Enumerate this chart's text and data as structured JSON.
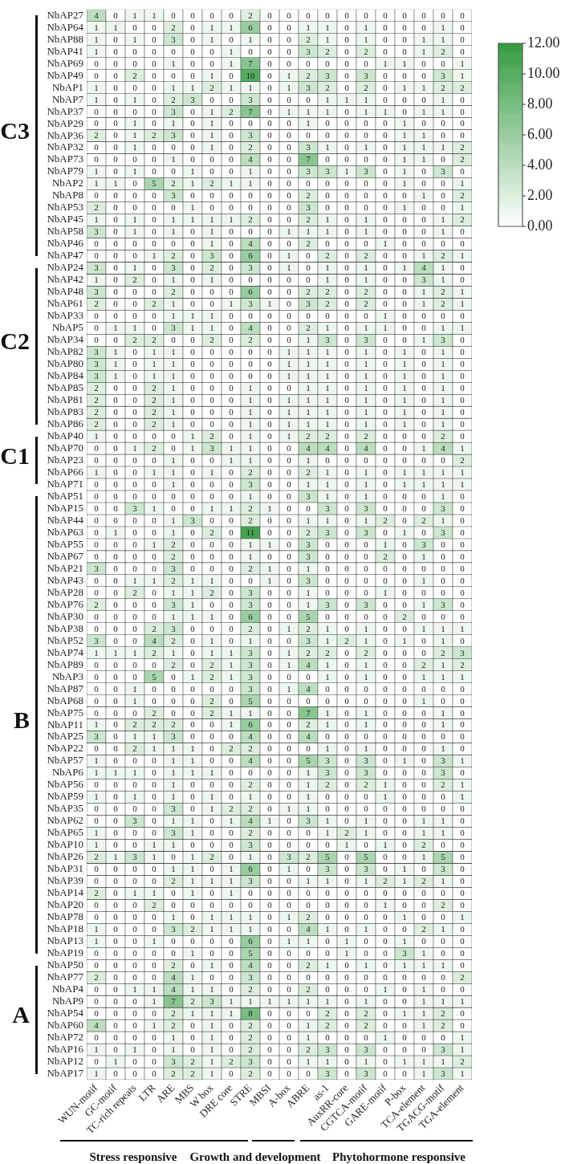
{
  "chart_data": {
    "type": "heatmap",
    "categories": [
      "WUN-motif",
      "GC-motif",
      "TC-rich repeats",
      "LTR",
      "ARE",
      "MBS",
      "W box",
      "DRE core",
      "STRE",
      "MBSI",
      "A-box",
      "ABRE",
      "as-1",
      "AuxRR-core",
      "CGTCA-motif",
      "GARE-motif",
      "P-box",
      "TCA-element",
      "TGACG-motif",
      "TGA-element"
    ],
    "y_categories": [
      "NbAP27",
      "NbAP64",
      "NbAP88",
      "NbAP41",
      "NbAP69",
      "NbAP49",
      "NbAP1",
      "NbAP7",
      "NbAP37",
      "NbAP29",
      "NbAP36",
      "NbAP32",
      "NbAP73",
      "NbAP79",
      "NbAP2",
      "NbAP8",
      "NbAP53",
      "NbAP45",
      "NbAP58",
      "NbAP46",
      "NbAP47",
      "NbAP24",
      "NbAP42",
      "NbAP48",
      "NbAP61",
      "NbAP33",
      "NbAP5",
      "NbAP34",
      "NbAP82",
      "NbAP80",
      "NbAP84",
      "NbAP85",
      "NbAP81",
      "NbAP83",
      "NbAP86",
      "NbAP40",
      "NbAP70",
      "NbAP23",
      "NbAP66",
      "NbAP71",
      "NbAP51",
      "NbAP15",
      "NbAP44",
      "NbAP63",
      "NbAP55",
      "NbAP67",
      "NbAP21",
      "NbAP43",
      "NbAP28",
      "NbAP76",
      "NbAP30",
      "NbAP38",
      "NbAP52",
      "NbAP74",
      "NbAP89",
      "NbAP3",
      "NbAP87",
      "NbAP68",
      "NbAP75",
      "NbAP11",
      "NbAP25",
      "NbAP22",
      "NbAP57",
      "NbAP6",
      "NbAP56",
      "NbAP59",
      "NbAP35",
      "NbAP62",
      "NbAP65",
      "NbAP10",
      "NbAP26",
      "NbAP31",
      "NbAP39",
      "NbAP14",
      "NbAP20",
      "NbAP78",
      "NbAP18",
      "NbAP13",
      "NbAP19",
      "NbAP50",
      "NbAP77",
      "NbAP4",
      "NbAP9",
      "NbAP54",
      "NbAP60",
      "NbAP72",
      "NbAP16",
      "NbAP12",
      "NbAP17"
    ],
    "cells": [
      [
        4,
        0,
        1,
        1,
        0,
        0,
        0,
        0,
        2,
        0,
        0,
        0,
        0,
        0,
        0,
        0,
        0,
        0,
        0,
        0
      ],
      [
        1,
        1,
        0,
        0,
        2,
        0,
        1,
        1,
        6,
        0,
        0,
        1,
        1,
        0,
        1,
        0,
        0,
        0,
        1,
        0
      ],
      [
        1,
        0,
        1,
        0,
        3,
        0,
        1,
        0,
        1,
        0,
        0,
        2,
        1,
        0,
        1,
        0,
        0,
        1,
        1,
        0
      ],
      [
        1,
        0,
        0,
        0,
        0,
        0,
        0,
        1,
        0,
        0,
        0,
        3,
        2,
        0,
        2,
        0,
        0,
        1,
        2,
        0
      ],
      [
        0,
        0,
        0,
        0,
        1,
        0,
        0,
        1,
        7,
        0,
        0,
        0,
        0,
        0,
        0,
        1,
        1,
        0,
        0,
        1
      ],
      [
        0,
        0,
        2,
        0,
        0,
        0,
        1,
        0,
        10,
        0,
        1,
        2,
        3,
        0,
        3,
        0,
        0,
        0,
        3,
        1
      ],
      [
        1,
        0,
        0,
        0,
        1,
        1,
        2,
        1,
        1,
        0,
        1,
        3,
        2,
        0,
        2,
        0,
        1,
        1,
        2,
        2
      ],
      [
        1,
        0,
        1,
        0,
        2,
        3,
        0,
        0,
        3,
        0,
        0,
        0,
        1,
        1,
        1,
        0,
        0,
        0,
        1,
        0
      ],
      [
        0,
        0,
        0,
        0,
        3,
        0,
        1,
        2,
        7,
        0,
        1,
        1,
        1,
        0,
        1,
        1,
        0,
        1,
        1,
        0
      ],
      [
        0,
        0,
        1,
        0,
        1,
        0,
        1,
        0,
        0,
        0,
        0,
        1,
        0,
        0,
        0,
        0,
        1,
        0,
        0,
        0
      ],
      [
        2,
        0,
        1,
        2,
        3,
        0,
        1,
        0,
        3,
        0,
        0,
        0,
        0,
        0,
        0,
        0,
        1,
        1,
        0,
        0
      ],
      [
        0,
        0,
        1,
        0,
        0,
        0,
        1,
        0,
        2,
        0,
        0,
        3,
        1,
        0,
        1,
        0,
        1,
        1,
        1,
        2
      ],
      [
        0,
        0,
        0,
        0,
        1,
        0,
        0,
        0,
        4,
        0,
        0,
        7,
        0,
        0,
        0,
        0,
        1,
        1,
        0,
        2
      ],
      [
        1,
        0,
        1,
        0,
        0,
        1,
        0,
        0,
        1,
        0,
        0,
        3,
        3,
        1,
        3,
        0,
        1,
        0,
        3,
        0
      ],
      [
        1,
        1,
        0,
        5,
        2,
        1,
        2,
        1,
        1,
        0,
        0,
        0,
        0,
        0,
        0,
        0,
        1,
        0,
        0,
        1
      ],
      [
        0,
        0,
        0,
        0,
        3,
        0,
        0,
        0,
        0,
        0,
        0,
        2,
        0,
        0,
        0,
        0,
        0,
        1,
        0,
        2
      ],
      [
        2,
        0,
        0,
        0,
        0,
        1,
        0,
        0,
        0,
        0,
        0,
        3,
        0,
        0,
        0,
        0,
        1,
        0,
        0,
        1
      ],
      [
        1,
        0,
        1,
        0,
        1,
        1,
        1,
        1,
        2,
        0,
        0,
        2,
        1,
        0,
        1,
        0,
        0,
        0,
        1,
        2
      ],
      [
        3,
        0,
        1,
        0,
        1,
        0,
        1,
        0,
        0,
        0,
        1,
        1,
        1,
        0,
        1,
        0,
        0,
        0,
        1,
        0
      ],
      [
        0,
        0,
        0,
        0,
        0,
        0,
        1,
        0,
        4,
        0,
        0,
        2,
        0,
        0,
        0,
        1,
        0,
        0,
        0,
        0
      ],
      [
        0,
        0,
        0,
        1,
        2,
        0,
        3,
        0,
        6,
        0,
        1,
        0,
        2,
        0,
        2,
        0,
        0,
        1,
        2,
        1
      ],
      [
        3,
        0,
        1,
        0,
        3,
        0,
        2,
        0,
        3,
        0,
        1,
        0,
        1,
        0,
        1,
        0,
        1,
        4,
        1,
        0
      ],
      [
        1,
        0,
        2,
        0,
        1,
        0,
        1,
        0,
        0,
        0,
        0,
        0,
        1,
        0,
        1,
        0,
        0,
        3,
        1,
        0
      ],
      [
        3,
        0,
        0,
        0,
        2,
        0,
        0,
        0,
        6,
        0,
        0,
        2,
        2,
        0,
        2,
        0,
        0,
        1,
        2,
        1
      ],
      [
        2,
        0,
        0,
        2,
        1,
        0,
        0,
        1,
        3,
        1,
        0,
        3,
        2,
        0,
        2,
        0,
        0,
        1,
        2,
        1
      ],
      [
        0,
        0,
        0,
        0,
        1,
        1,
        1,
        0,
        0,
        0,
        0,
        0,
        0,
        0,
        0,
        1,
        0,
        0,
        0,
        0
      ],
      [
        0,
        1,
        1,
        0,
        3,
        1,
        1,
        0,
        4,
        0,
        0,
        2,
        1,
        0,
        1,
        1,
        0,
        0,
        1,
        1
      ],
      [
        0,
        0,
        2,
        2,
        0,
        0,
        2,
        0,
        2,
        0,
        0,
        1,
        3,
        0,
        3,
        0,
        0,
        1,
        3,
        0
      ],
      [
        3,
        1,
        0,
        1,
        1,
        0,
        0,
        0,
        0,
        0,
        1,
        1,
        1,
        0,
        1,
        0,
        1,
        0,
        1,
        0
      ],
      [
        3,
        1,
        0,
        1,
        1,
        0,
        0,
        0,
        0,
        0,
        1,
        1,
        1,
        0,
        1,
        0,
        1,
        0,
        1,
        0
      ],
      [
        3,
        1,
        0,
        1,
        1,
        0,
        0,
        0,
        0,
        0,
        1,
        1,
        1,
        0,
        1,
        0,
        1,
        0,
        1,
        0
      ],
      [
        2,
        0,
        0,
        2,
        1,
        0,
        0,
        0,
        1,
        0,
        0,
        1,
        1,
        0,
        1,
        0,
        1,
        0,
        1,
        0
      ],
      [
        2,
        0,
        0,
        2,
        1,
        0,
        0,
        0,
        1,
        0,
        1,
        1,
        1,
        0,
        1,
        0,
        1,
        0,
        1,
        0
      ],
      [
        2,
        0,
        0,
        2,
        1,
        0,
        0,
        0,
        1,
        0,
        1,
        1,
        1,
        0,
        1,
        0,
        1,
        0,
        1,
        0
      ],
      [
        2,
        0,
        0,
        2,
        1,
        0,
        0,
        0,
        1,
        0,
        1,
        1,
        1,
        0,
        1,
        0,
        1,
        0,
        1,
        0
      ],
      [
        1,
        0,
        0,
        0,
        0,
        1,
        2,
        0,
        1,
        0,
        1,
        2,
        2,
        0,
        2,
        0,
        0,
        0,
        2,
        0
      ],
      [
        0,
        0,
        1,
        2,
        0,
        1,
        3,
        1,
        1,
        0,
        0,
        4,
        4,
        0,
        4,
        0,
        0,
        1,
        4,
        1
      ],
      [
        0,
        0,
        0,
        0,
        1,
        0,
        0,
        1,
        1,
        0,
        0,
        1,
        0,
        0,
        0,
        0,
        0,
        0,
        0,
        2
      ],
      [
        1,
        0,
        0,
        1,
        1,
        0,
        1,
        0,
        2,
        0,
        0,
        2,
        1,
        0,
        1,
        0,
        1,
        1,
        1,
        1
      ],
      [
        0,
        0,
        0,
        0,
        1,
        0,
        0,
        0,
        3,
        0,
        0,
        1,
        1,
        0,
        1,
        0,
        1,
        1,
        1,
        1
      ],
      [
        0,
        0,
        0,
        0,
        0,
        0,
        0,
        0,
        1,
        0,
        0,
        3,
        1,
        0,
        1,
        0,
        0,
        0,
        1,
        0
      ],
      [
        0,
        0,
        3,
        1,
        0,
        0,
        1,
        1,
        2,
        1,
        0,
        0,
        3,
        0,
        3,
        0,
        0,
        0,
        3,
        0
      ],
      [
        0,
        0,
        0,
        0,
        1,
        3,
        0,
        0,
        2,
        0,
        0,
        1,
        1,
        0,
        1,
        2,
        0,
        2,
        1,
        0
      ],
      [
        0,
        1,
        0,
        0,
        1,
        0,
        2,
        0,
        11,
        0,
        0,
        2,
        3,
        0,
        3,
        0,
        1,
        0,
        3,
        0
      ],
      [
        0,
        0,
        0,
        1,
        2,
        0,
        0,
        0,
        1,
        1,
        0,
        3,
        0,
        0,
        0,
        1,
        0,
        3,
        0,
        0
      ],
      [
        0,
        0,
        0,
        0,
        2,
        0,
        0,
        0,
        1,
        0,
        0,
        3,
        0,
        0,
        0,
        2,
        0,
        1,
        0,
        0
      ],
      [
        3,
        0,
        0,
        0,
        3,
        0,
        0,
        0,
        2,
        1,
        0,
        1,
        0,
        0,
        0,
        0,
        0,
        0,
        0,
        0
      ],
      [
        0,
        0,
        1,
        1,
        2,
        1,
        1,
        0,
        0,
        1,
        0,
        3,
        0,
        0,
        0,
        0,
        0,
        1,
        0,
        0
      ],
      [
        0,
        0,
        2,
        0,
        1,
        1,
        2,
        0,
        3,
        0,
        0,
        1,
        0,
        0,
        0,
        1,
        0,
        0,
        0,
        0
      ],
      [
        2,
        0,
        0,
        0,
        3,
        1,
        0,
        0,
        3,
        0,
        0,
        1,
        3,
        0,
        3,
        0,
        0,
        1,
        3,
        0
      ],
      [
        0,
        0,
        0,
        0,
        1,
        1,
        1,
        0,
        6,
        0,
        0,
        5,
        0,
        0,
        0,
        0,
        2,
        0,
        0,
        0
      ],
      [
        0,
        0,
        0,
        2,
        3,
        0,
        0,
        0,
        2,
        0,
        1,
        2,
        1,
        0,
        1,
        0,
        0,
        1,
        1,
        1
      ],
      [
        3,
        0,
        0,
        4,
        2,
        0,
        1,
        0,
        1,
        0,
        0,
        3,
        1,
        2,
        1,
        0,
        1,
        0,
        1,
        0
      ],
      [
        1,
        1,
        1,
        2,
        1,
        0,
        1,
        1,
        3,
        0,
        1,
        2,
        2,
        0,
        2,
        0,
        0,
        0,
        2,
        3
      ],
      [
        0,
        0,
        0,
        0,
        2,
        0,
        2,
        1,
        3,
        0,
        1,
        4,
        1,
        0,
        1,
        0,
        0,
        2,
        1,
        2
      ],
      [
        0,
        0,
        0,
        5,
        0,
        1,
        2,
        1,
        3,
        0,
        0,
        0,
        1,
        0,
        1,
        0,
        0,
        1,
        1,
        1
      ],
      [
        0,
        0,
        1,
        0,
        0,
        0,
        0,
        0,
        3,
        0,
        1,
        4,
        0,
        0,
        0,
        0,
        0,
        0,
        0,
        0
      ],
      [
        0,
        0,
        1,
        0,
        0,
        0,
        2,
        0,
        5,
        0,
        0,
        0,
        0,
        0,
        0,
        0,
        0,
        1,
        0,
        0
      ],
      [
        0,
        0,
        0,
        2,
        0,
        0,
        2,
        1,
        1,
        0,
        0,
        7,
        1,
        0,
        1,
        0,
        0,
        0,
        1,
        0
      ],
      [
        1,
        0,
        2,
        2,
        2,
        0,
        0,
        1,
        6,
        0,
        0,
        2,
        1,
        0,
        1,
        0,
        0,
        0,
        1,
        0
      ],
      [
        3,
        0,
        1,
        1,
        3,
        0,
        0,
        0,
        4,
        0,
        0,
        4,
        0,
        0,
        0,
        0,
        0,
        0,
        0,
        0
      ],
      [
        0,
        0,
        2,
        1,
        1,
        1,
        0,
        2,
        2,
        0,
        0,
        0,
        1,
        0,
        1,
        0,
        0,
        0,
        1,
        0
      ],
      [
        1,
        0,
        0,
        0,
        1,
        1,
        0,
        0,
        4,
        0,
        0,
        5,
        3,
        0,
        3,
        0,
        1,
        0,
        3,
        1
      ],
      [
        1,
        1,
        1,
        0,
        1,
        1,
        1,
        0,
        0,
        0,
        0,
        1,
        3,
        0,
        3,
        0,
        0,
        0,
        3,
        0
      ],
      [
        0,
        0,
        0,
        0,
        1,
        0,
        0,
        0,
        2,
        0,
        0,
        1,
        2,
        0,
        2,
        1,
        0,
        0,
        2,
        1
      ],
      [
        1,
        0,
        1,
        0,
        1,
        0,
        1,
        0,
        1,
        0,
        0,
        1,
        0,
        0,
        0,
        1,
        0,
        0,
        0,
        1
      ],
      [
        0,
        0,
        0,
        0,
        3,
        0,
        1,
        2,
        2,
        0,
        1,
        1,
        0,
        0,
        0,
        0,
        0,
        0,
        0,
        0
      ],
      [
        0,
        0,
        3,
        0,
        1,
        1,
        0,
        1,
        4,
        1,
        0,
        3,
        1,
        0,
        1,
        0,
        0,
        1,
        1,
        0
      ],
      [
        1,
        0,
        0,
        0,
        3,
        1,
        0,
        0,
        2,
        0,
        0,
        0,
        1,
        2,
        1,
        0,
        0,
        1,
        1,
        0
      ],
      [
        1,
        0,
        0,
        1,
        1,
        0,
        0,
        0,
        3,
        0,
        0,
        0,
        0,
        1,
        0,
        1,
        0,
        2,
        0,
        0
      ],
      [
        2,
        1,
        3,
        1,
        0,
        1,
        2,
        0,
        1,
        0,
        3,
        2,
        5,
        0,
        5,
        0,
        0,
        1,
        5,
        0
      ],
      [
        0,
        0,
        0,
        0,
        1,
        1,
        0,
        1,
        6,
        0,
        1,
        0,
        3,
        0,
        3,
        0,
        1,
        0,
        3,
        0
      ],
      [
        0,
        0,
        0,
        0,
        2,
        1,
        1,
        1,
        3,
        0,
        0,
        1,
        1,
        0,
        1,
        2,
        1,
        2,
        1,
        0
      ],
      [
        2,
        0,
        1,
        1,
        0,
        1,
        0,
        1,
        0,
        0,
        0,
        0,
        0,
        0,
        0,
        0,
        0,
        0,
        0,
        0
      ],
      [
        0,
        0,
        0,
        2,
        0,
        0,
        0,
        0,
        0,
        0,
        0,
        0,
        0,
        0,
        0,
        1,
        0,
        0,
        2,
        0
      ],
      [
        0,
        0,
        0,
        0,
        1,
        0,
        1,
        1,
        1,
        0,
        1,
        2,
        0,
        0,
        0,
        0,
        1,
        0,
        0,
        1
      ],
      [
        1,
        0,
        0,
        0,
        3,
        2,
        1,
        1,
        1,
        0,
        0,
        4,
        1,
        0,
        1,
        0,
        0,
        2,
        1,
        0
      ],
      [
        1,
        0,
        0,
        1,
        0,
        0,
        0,
        0,
        6,
        0,
        1,
        1,
        0,
        1,
        0,
        0,
        1,
        0,
        0,
        0
      ],
      [
        0,
        0,
        0,
        0,
        0,
        1,
        0,
        0,
        5,
        0,
        0,
        0,
        0,
        1,
        0,
        0,
        3,
        1,
        0,
        0
      ],
      [
        0,
        0,
        0,
        0,
        2,
        0,
        1,
        0,
        4,
        0,
        0,
        2,
        1,
        0,
        1,
        0,
        1,
        1,
        1,
        0
      ],
      [
        2,
        0,
        0,
        0,
        4,
        1,
        0,
        0,
        3,
        0,
        0,
        0,
        0,
        0,
        0,
        0,
        0,
        0,
        0,
        2
      ],
      [
        0,
        0,
        1,
        1,
        4,
        1,
        1,
        0,
        2,
        0,
        0,
        2,
        0,
        0,
        0,
        1,
        0,
        1,
        0,
        0
      ],
      [
        0,
        0,
        0,
        1,
        7,
        2,
        3,
        1,
        1,
        1,
        1,
        1,
        1,
        0,
        1,
        0,
        0,
        1,
        1,
        1
      ],
      [
        0,
        0,
        0,
        0,
        2,
        1,
        1,
        1,
        8,
        0,
        0,
        0,
        2,
        0,
        2,
        0,
        1,
        1,
        2,
        0
      ],
      [
        4,
        0,
        0,
        1,
        2,
        0,
        1,
        0,
        2,
        0,
        0,
        1,
        2,
        0,
        2,
        0,
        0,
        1,
        2,
        0
      ],
      [
        0,
        0,
        0,
        0,
        1,
        0,
        1,
        0,
        2,
        0,
        0,
        1,
        0,
        0,
        0,
        1,
        0,
        0,
        0,
        1
      ],
      [
        1,
        0,
        1,
        0,
        1,
        0,
        1,
        0,
        2,
        0,
        0,
        2,
        3,
        0,
        3,
        0,
        0,
        0,
        3,
        1
      ],
      [
        0,
        1,
        0,
        0,
        3,
        2,
        1,
        2,
        3,
        0,
        0,
        1,
        1,
        0,
        1,
        0,
        1,
        1,
        1,
        2
      ],
      [
        1,
        0,
        0,
        0,
        2,
        2,
        1,
        0,
        2,
        0,
        0,
        0,
        3,
        0,
        3,
        0,
        0,
        1,
        3,
        1
      ]
    ],
    "clim": [
      0,
      12
    ],
    "cticks": [
      {
        "value": 0,
        "label": "0.00"
      },
      {
        "value": 2,
        "label": "2.00"
      },
      {
        "value": 4,
        "label": "4.00"
      },
      {
        "value": 6,
        "label": "6.00"
      },
      {
        "value": 8,
        "label": "8.00"
      },
      {
        "value": 10,
        "label": "10.00"
      },
      {
        "value": 12,
        "label": "12.00"
      }
    ],
    "data_labels": true,
    "annotations": [
      "C3",
      "C2",
      "C1",
      "B",
      "A",
      "Stress responsive",
      "Growth and development",
      "Phytohormone responsive"
    ]
  }
}
